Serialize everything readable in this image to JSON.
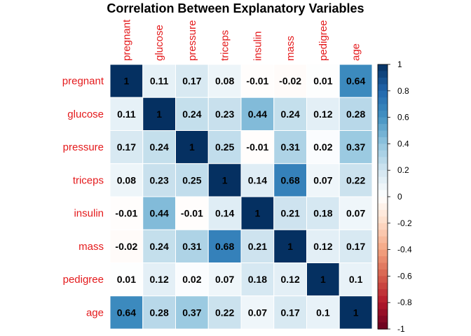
{
  "chart_data": {
    "type": "heatmap",
    "title": "Correlation Between Explanatory Variables",
    "variables": [
      "pregnant",
      "glucose",
      "pressure",
      "triceps",
      "insulin",
      "mass",
      "pedigree",
      "age"
    ],
    "matrix": [
      [
        1,
        0.11,
        0.17,
        0.08,
        -0.01,
        -0.02,
        0.01,
        0.64
      ],
      [
        0.11,
        1,
        0.24,
        0.23,
        0.44,
        0.24,
        0.12,
        0.28
      ],
      [
        0.17,
        0.24,
        1,
        0.25,
        -0.01,
        0.31,
        0.02,
        0.37
      ],
      [
        0.08,
        0.23,
        0.25,
        1,
        0.14,
        0.68,
        0.07,
        0.22
      ],
      [
        -0.01,
        0.44,
        -0.01,
        0.14,
        1,
        0.21,
        0.18,
        0.07
      ],
      [
        -0.02,
        0.24,
        0.31,
        0.68,
        0.21,
        1,
        0.12,
        0.17
      ],
      [
        0.01,
        0.12,
        0.02,
        0.07,
        0.18,
        0.12,
        1,
        0.1
      ],
      [
        0.64,
        0.28,
        0.37,
        0.22,
        0.07,
        0.17,
        0.1,
        1
      ]
    ],
    "legend": {
      "min": -1,
      "max": 1,
      "ticks": [
        1,
        0.8,
        0.6,
        0.4,
        0.2,
        0,
        -0.2,
        -0.4,
        -0.6,
        -0.8,
        -1
      ],
      "placement": "right"
    },
    "label_color": "#e41a1c",
    "colors": {
      "negative_end": "#67001f",
      "neutral": "#ffffff",
      "positive_end": "#053061"
    }
  }
}
